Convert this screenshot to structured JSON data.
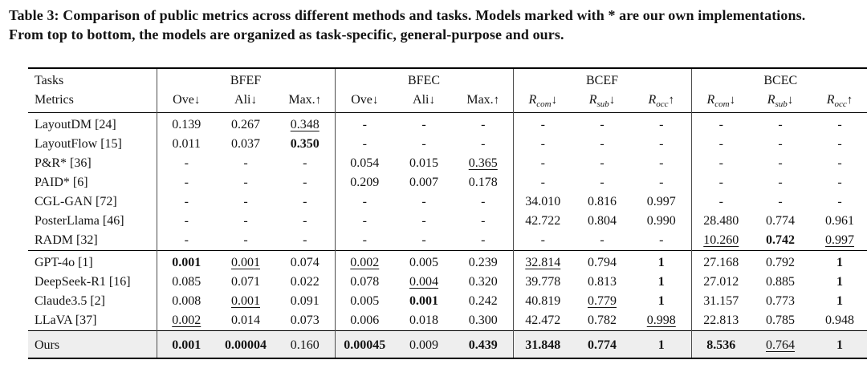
{
  "caption": {
    "line1": "Table 3: Comparison of public metrics across different methods and tasks. Models marked with * are our own implementations.",
    "line2": "From top to bottom, the models are organized as task-specific, general-purpose and ours."
  },
  "table": {
    "corner": {
      "row1": "Tasks",
      "row2": "Metrics"
    },
    "groups": [
      {
        "name": "BFEF",
        "metrics": [
          {
            "label": "Ove",
            "sub": "",
            "arrow": "↓"
          },
          {
            "label": "Ali",
            "sub": "",
            "arrow": "↓"
          },
          {
            "label": "Max.",
            "sub": "",
            "arrow": "↑"
          }
        ]
      },
      {
        "name": "BFEC",
        "metrics": [
          {
            "label": "Ove",
            "sub": "",
            "arrow": "↓"
          },
          {
            "label": "Ali",
            "sub": "",
            "arrow": "↓"
          },
          {
            "label": "Max.",
            "sub": "",
            "arrow": "↑"
          }
        ]
      },
      {
        "name": "BCEF",
        "metrics": [
          {
            "label": "R",
            "sub": "com",
            "arrow": "↓"
          },
          {
            "label": "R",
            "sub": "sub",
            "arrow": "↓"
          },
          {
            "label": "R",
            "sub": "occ",
            "arrow": "↑"
          }
        ]
      },
      {
        "name": "BCEC",
        "metrics": [
          {
            "label": "R",
            "sub": "com",
            "arrow": "↓"
          },
          {
            "label": "R",
            "sub": "sub",
            "arrow": "↓"
          },
          {
            "label": "R",
            "sub": "occ",
            "arrow": "↑"
          }
        ]
      }
    ],
    "style_legend": {
      "b": "bold = best result",
      "u": "underline = second-best result"
    },
    "highlight_color": "#eeeeee",
    "sections": [
      {
        "name": "task-specific",
        "highlight": false,
        "rows": [
          {
            "model": "LayoutDM [24]",
            "cells": [
              [
                "0.139",
                ""
              ],
              [
                "0.267",
                ""
              ],
              [
                "0.348",
                "u"
              ],
              [
                "-",
                ""
              ],
              [
                "-",
                ""
              ],
              [
                "-",
                ""
              ],
              [
                "-",
                ""
              ],
              [
                "-",
                ""
              ],
              [
                "-",
                ""
              ],
              [
                "-",
                ""
              ],
              [
                "-",
                ""
              ],
              [
                "-",
                ""
              ]
            ]
          },
          {
            "model": "LayoutFlow [15]",
            "cells": [
              [
                "0.011",
                ""
              ],
              [
                "0.037",
                ""
              ],
              [
                "0.350",
                "b"
              ],
              [
                "-",
                ""
              ],
              [
                "-",
                ""
              ],
              [
                "-",
                ""
              ],
              [
                "-",
                ""
              ],
              [
                "-",
                ""
              ],
              [
                "-",
                ""
              ],
              [
                "-",
                ""
              ],
              [
                "-",
                ""
              ],
              [
                "-",
                ""
              ]
            ]
          },
          {
            "model": "P&R* [36]",
            "cells": [
              [
                "-",
                ""
              ],
              [
                "-",
                ""
              ],
              [
                "-",
                ""
              ],
              [
                "0.054",
                ""
              ],
              [
                "0.015",
                ""
              ],
              [
                "0.365",
                "u"
              ],
              [
                "-",
                ""
              ],
              [
                "-",
                ""
              ],
              [
                "-",
                ""
              ],
              [
                "-",
                ""
              ],
              [
                "-",
                ""
              ],
              [
                "-",
                ""
              ]
            ]
          },
          {
            "model": "PAID* [6]",
            "cells": [
              [
                "-",
                ""
              ],
              [
                "-",
                ""
              ],
              [
                "-",
                ""
              ],
              [
                "0.209",
                ""
              ],
              [
                "0.007",
                ""
              ],
              [
                "0.178",
                ""
              ],
              [
                "-",
                ""
              ],
              [
                "-",
                ""
              ],
              [
                "-",
                ""
              ],
              [
                "-",
                ""
              ],
              [
                "-",
                ""
              ],
              [
                "-",
                ""
              ]
            ]
          },
          {
            "model": "CGL-GAN [72]",
            "cells": [
              [
                "-",
                ""
              ],
              [
                "-",
                ""
              ],
              [
                "-",
                ""
              ],
              [
                "-",
                ""
              ],
              [
                "-",
                ""
              ],
              [
                "-",
                ""
              ],
              [
                "34.010",
                ""
              ],
              [
                "0.816",
                ""
              ],
              [
                "0.997",
                ""
              ],
              [
                "-",
                ""
              ],
              [
                "-",
                ""
              ],
              [
                "-",
                ""
              ]
            ]
          },
          {
            "model": "PosterLlama [46]",
            "cells": [
              [
                "-",
                ""
              ],
              [
                "-",
                ""
              ],
              [
                "-",
                ""
              ],
              [
                "-",
                ""
              ],
              [
                "-",
                ""
              ],
              [
                "-",
                ""
              ],
              [
                "42.722",
                ""
              ],
              [
                "0.804",
                ""
              ],
              [
                "0.990",
                ""
              ],
              [
                "28.480",
                ""
              ],
              [
                "0.774",
                ""
              ],
              [
                "0.961",
                ""
              ]
            ]
          },
          {
            "model": "RADM [32]",
            "cells": [
              [
                "-",
                ""
              ],
              [
                "-",
                ""
              ],
              [
                "-",
                ""
              ],
              [
                "-",
                ""
              ],
              [
                "-",
                ""
              ],
              [
                "-",
                ""
              ],
              [
                "-",
                ""
              ],
              [
                "-",
                ""
              ],
              [
                "-",
                ""
              ],
              [
                "10.260",
                "u"
              ],
              [
                "0.742",
                "b"
              ],
              [
                "0.997",
                "u"
              ]
            ]
          }
        ]
      },
      {
        "name": "general-purpose",
        "highlight": false,
        "rows": [
          {
            "model": "GPT-4o [1]",
            "cells": [
              [
                "0.001",
                "b"
              ],
              [
                "0.001",
                "u"
              ],
              [
                "0.074",
                ""
              ],
              [
                "0.002",
                "u"
              ],
              [
                "0.005",
                ""
              ],
              [
                "0.239",
                ""
              ],
              [
                "32.814",
                "u"
              ],
              [
                "0.794",
                ""
              ],
              [
                "1",
                "b"
              ],
              [
                "27.168",
                ""
              ],
              [
                "0.792",
                ""
              ],
              [
                "1",
                "b"
              ]
            ]
          },
          {
            "model": "DeepSeek-R1 [16]",
            "cells": [
              [
                "0.085",
                ""
              ],
              [
                "0.071",
                ""
              ],
              [
                "0.022",
                ""
              ],
              [
                "0.078",
                ""
              ],
              [
                "0.004",
                "u"
              ],
              [
                "0.320",
                ""
              ],
              [
                "39.778",
                ""
              ],
              [
                "0.813",
                ""
              ],
              [
                "1",
                "b"
              ],
              [
                "27.012",
                ""
              ],
              [
                "0.885",
                ""
              ],
              [
                "1",
                "b"
              ]
            ]
          },
          {
            "model": "Claude3.5 [2]",
            "cells": [
              [
                "0.008",
                ""
              ],
              [
                "0.001",
                "u"
              ],
              [
                "0.091",
                ""
              ],
              [
                "0.005",
                ""
              ],
              [
                "0.001",
                "b"
              ],
              [
                "0.242",
                ""
              ],
              [
                "40.819",
                ""
              ],
              [
                "0.779",
                "u"
              ],
              [
                "1",
                "b"
              ],
              [
                "31.157",
                ""
              ],
              [
                "0.773",
                ""
              ],
              [
                "1",
                "b"
              ]
            ]
          },
          {
            "model": "LLaVA [37]",
            "cells": [
              [
                "0.002",
                "u"
              ],
              [
                "0.014",
                ""
              ],
              [
                "0.073",
                ""
              ],
              [
                "0.006",
                ""
              ],
              [
                "0.018",
                ""
              ],
              [
                "0.300",
                ""
              ],
              [
                "42.472",
                ""
              ],
              [
                "0.782",
                ""
              ],
              [
                "0.998",
                "u"
              ],
              [
                "22.813",
                ""
              ],
              [
                "0.785",
                ""
              ],
              [
                "0.948",
                ""
              ]
            ]
          }
        ]
      },
      {
        "name": "ours",
        "highlight": true,
        "rows": [
          {
            "model": "Ours",
            "cells": [
              [
                "0.001",
                "b"
              ],
              [
                "0.00004",
                "b"
              ],
              [
                "0.160",
                ""
              ],
              [
                "0.00045",
                "b"
              ],
              [
                "0.009",
                ""
              ],
              [
                "0.439",
                "b"
              ],
              [
                "31.848",
                "b"
              ],
              [
                "0.774",
                "b"
              ],
              [
                "1",
                "b"
              ],
              [
                "8.536",
                "b"
              ],
              [
                "0.764",
                "u"
              ],
              [
                "1",
                "b"
              ]
            ]
          }
        ]
      }
    ]
  }
}
